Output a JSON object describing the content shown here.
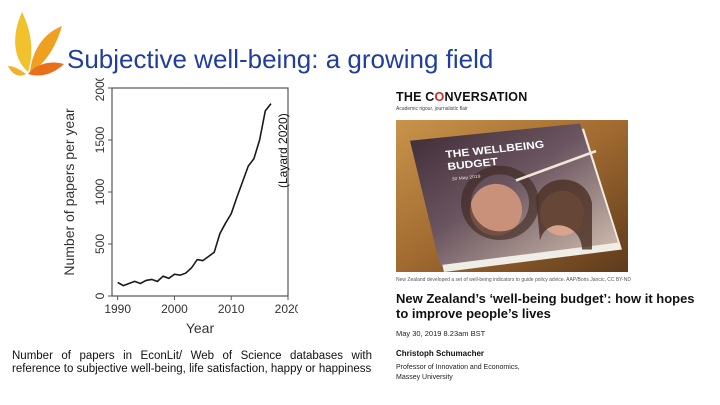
{
  "slide": {
    "title": "Subjective well-being: a growing field",
    "citation": "(Layard 2020)",
    "caption": "Number of papers in EconLit/ Web of Science databases with reference to subjective well-being, life satisfaction, happy or happiness"
  },
  "chart_data": {
    "type": "line",
    "title": "",
    "xlabel": "Year",
    "ylabel": "Number of papers per year",
    "xlim": [
      1989,
      2020
    ],
    "ylim": [
      0,
      2000
    ],
    "x_ticks": [
      1990,
      2000,
      2010,
      2020
    ],
    "y_ticks": [
      0,
      500,
      1000,
      1500,
      2000
    ],
    "grid": false,
    "series": [
      {
        "x": [
          1990,
          1991,
          1992,
          1993,
          1994,
          1995,
          1996,
          1997,
          1998,
          1999,
          2000,
          2001,
          2002,
          2003,
          2004,
          2005,
          2006,
          2007,
          2008,
          2009,
          2010,
          2011,
          2012,
          2013,
          2014,
          2015,
          2016,
          2017
        ],
        "y": [
          130,
          100,
          120,
          140,
          120,
          150,
          160,
          140,
          190,
          170,
          210,
          200,
          220,
          270,
          350,
          340,
          380,
          420,
          600,
          700,
          790,
          950,
          1100,
          1250,
          1320,
          1500,
          1780,
          1850
        ]
      }
    ],
    "color": "#1a1a1a"
  },
  "article": {
    "masthead_pre": "THE C",
    "masthead_o": "O",
    "masthead_post": "NVERSATION",
    "tagline": "Academic rigour, journalistic flair",
    "cover_title_1": "THE WELLBEING",
    "cover_title_2": "BUDGET",
    "cover_date": "30 May 2019",
    "photo_caption": "New Zealand developed a set of well-being indicators to guide policy advice. AAP/Boris Jancic, CC BY-ND",
    "headline": "New Zealand’s ‘well-being budget’: how it hopes to improve people’s lives",
    "date": "May 30, 2019 8.23am BST",
    "author": "Christoph Schumacher",
    "affiliation_1": "Professor of Innovation and Economics,",
    "affiliation_2": "Massey University",
    "colors": {
      "accent": "#d4281c",
      "title_blue": "#1f3e9e"
    }
  },
  "logo": {
    "icon": "leaf-fan-logo",
    "colors": [
      "#f2c12e",
      "#f0a020",
      "#e8701a"
    ]
  }
}
